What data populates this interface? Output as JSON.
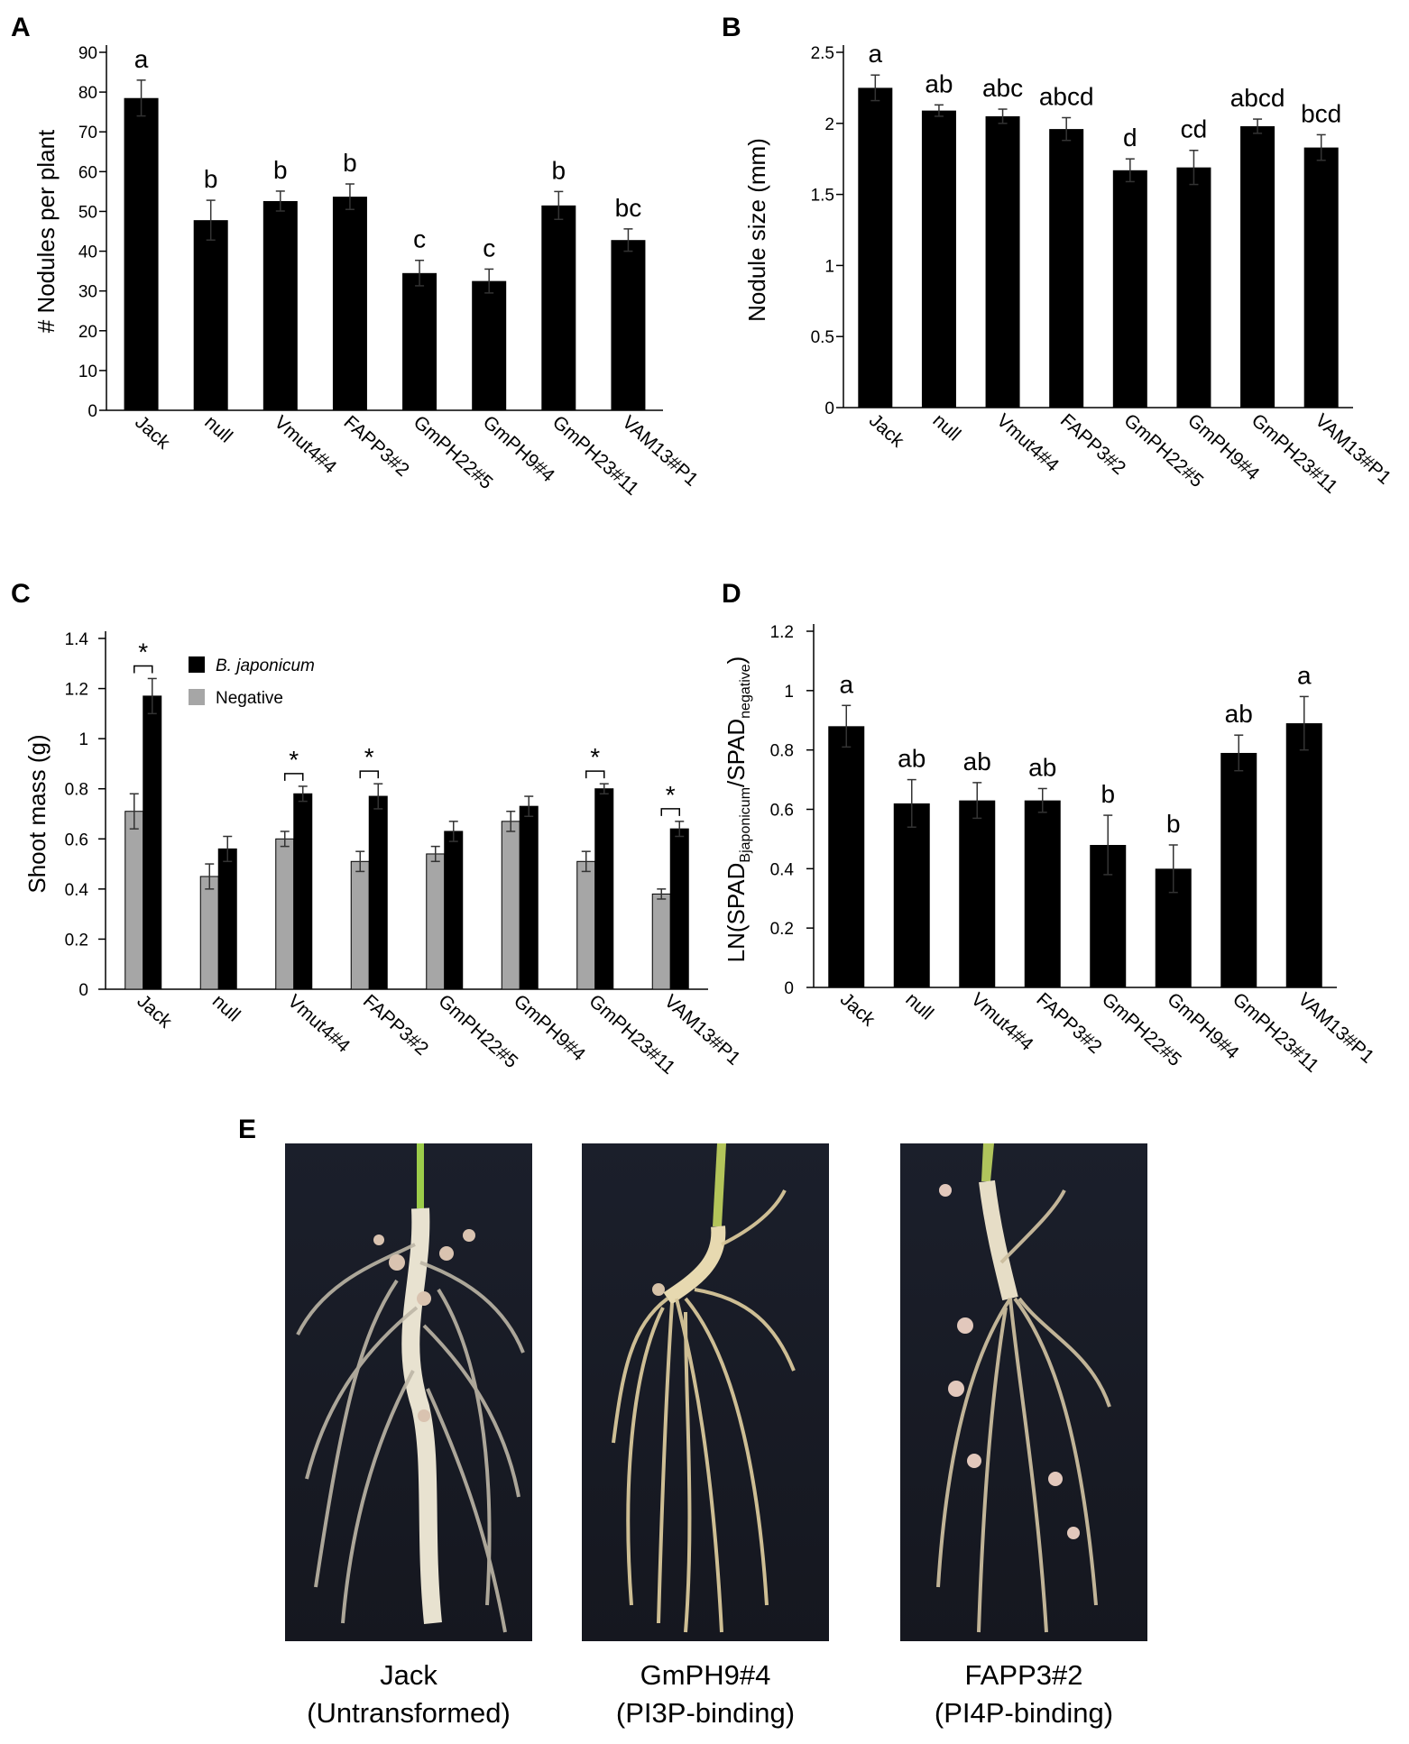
{
  "panels": {
    "a": "A",
    "b": "B",
    "c": "C",
    "d": "D",
    "e": "E"
  },
  "chart_data": [
    {
      "type": "bar",
      "panel": "A",
      "categories": [
        "Jack",
        "null",
        "Vmut4#4",
        "FAPP3#2",
        "GmPH22#5",
        "GmPH9#4",
        "GmPH23#11",
        "VAM13#P1"
      ],
      "values": [
        78.5,
        47.8,
        52.6,
        53.7,
        34.5,
        32.5,
        51.5,
        42.8
      ],
      "errors": [
        4.5,
        5.0,
        2.5,
        3.2,
        3.2,
        3.0,
        3.5,
        2.8
      ],
      "significance": [
        "a",
        "b",
        "b",
        "b",
        "c",
        "c",
        "b",
        "bc"
      ],
      "ylabel": "# Nodules per plant",
      "ylim": [
        0,
        90
      ],
      "yticks": [
        0,
        10,
        20,
        30,
        40,
        50,
        60,
        70,
        80,
        90
      ],
      "color": "#000000"
    },
    {
      "type": "bar",
      "panel": "B",
      "categories": [
        "Jack",
        "null",
        "Vmut4#4",
        "FAPP3#2",
        "GmPH22#5",
        "GmPH9#4",
        "GmPH23#11",
        "VAM13#P1"
      ],
      "values": [
        2.25,
        2.09,
        2.05,
        1.96,
        1.67,
        1.69,
        1.98,
        1.83
      ],
      "errors": [
        0.09,
        0.04,
        0.05,
        0.08,
        0.08,
        0.12,
        0.05,
        0.09
      ],
      "significance": [
        "a",
        "ab",
        "abc",
        "abcd",
        "d",
        "cd",
        "abcd",
        "bcd"
      ],
      "ylabel": "Nodule size (mm)",
      "ylim": [
        0,
        2.5
      ],
      "yticks": [
        0,
        0.5,
        1,
        1.5,
        2,
        2.5
      ],
      "color": "#000000"
    },
    {
      "type": "bar",
      "panel": "C",
      "categories": [
        "Jack",
        "null",
        "Vmut4#4",
        "FAPP3#2",
        "GmPH22#5",
        "GmPH9#4",
        "GmPH23#11",
        "VAM13#P1"
      ],
      "series": [
        {
          "name": "Negative",
          "values": [
            0.71,
            0.45,
            0.6,
            0.51,
            0.54,
            0.67,
            0.51,
            0.38
          ],
          "errors": [
            0.07,
            0.05,
            0.03,
            0.04,
            0.03,
            0.04,
            0.04,
            0.02
          ],
          "color": "#a6a6a6"
        },
        {
          "name": "B. japonicum",
          "values": [
            1.17,
            0.56,
            0.78,
            0.77,
            0.63,
            0.73,
            0.8,
            0.64
          ],
          "errors": [
            0.07,
            0.05,
            0.03,
            0.05,
            0.04,
            0.04,
            0.02,
            0.03
          ],
          "color": "#000000"
        }
      ],
      "significant_pairs": [
        "Jack",
        "Vmut4#4",
        "FAPP3#2",
        "GmPH23#11",
        "VAM13#P1"
      ],
      "significance_mark": "*",
      "ylabel": "Shoot mass (g)",
      "ylim": [
        0,
        1.4
      ],
      "yticks": [
        0,
        0.2,
        0.4,
        0.6,
        0.8,
        1,
        1.2,
        1.4
      ],
      "ytick_labels": [
        "0",
        "0.2",
        "0.4",
        "0.6",
        "0.8",
        "1",
        "1.2",
        "1.4"
      ],
      "legend": "top-left"
    },
    {
      "type": "bar",
      "panel": "D",
      "categories": [
        "Jack",
        "null",
        "Vmut4#4",
        "FAPP3#2",
        "GmPH22#5",
        "GmPH9#4",
        "GmPH23#11",
        "VAM13#P1"
      ],
      "values": [
        0.88,
        0.62,
        0.63,
        0.63,
        0.48,
        0.4,
        0.79,
        0.89
      ],
      "errors": [
        0.07,
        0.08,
        0.06,
        0.04,
        0.1,
        0.08,
        0.06,
        0.09
      ],
      "significance": [
        "a",
        "ab",
        "ab",
        "ab",
        "b",
        "b",
        "ab",
        "a"
      ],
      "ylabel": {
        "prefix": "LN(SPAD",
        "sub1": "Bjaponicum",
        "mid": "/SPAD",
        "sub2": "negative",
        "suffix": ")"
      },
      "ylim": [
        0,
        1.2
      ],
      "yticks": [
        0,
        0.2,
        0.4,
        0.6,
        0.8,
        1,
        1.2
      ],
      "color": "#000000"
    }
  ],
  "photos": [
    {
      "line1": "Jack",
      "line2": "(Untransformed)"
    },
    {
      "line1": "GmPH9#4",
      "line2": "(PI3P-binding)"
    },
    {
      "line1": "FAPP3#2",
      "line2": "(PI4P-binding)"
    }
  ]
}
